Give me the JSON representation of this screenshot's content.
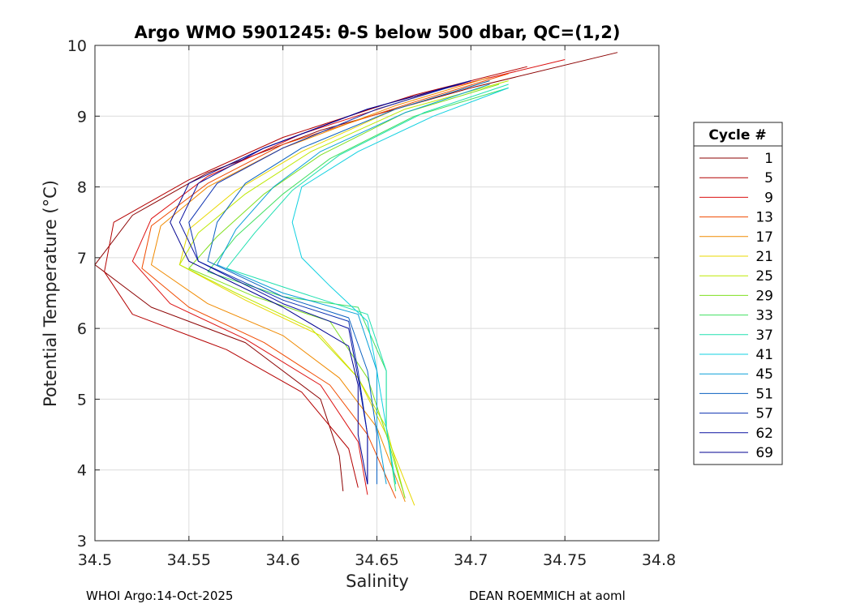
{
  "chart_data": {
    "type": "line",
    "title": "Argo WMO 5901245: θ-S below 500 dbar,  QC=(1,2)",
    "xlabel": "Salinity",
    "ylabel": "Potential Temperature (°C)",
    "xlim": [
      34.5,
      34.8
    ],
    "ylim": [
      3,
      10
    ],
    "xticks": [
      "34.5",
      "34.55",
      "34.6",
      "34.65",
      "34.7",
      "34.75",
      "34.8"
    ],
    "yticks": [
      "3",
      "4",
      "5",
      "6",
      "7",
      "8",
      "9",
      "10"
    ],
    "grid": true,
    "legend": {
      "title": "Cycle #",
      "placement": "right",
      "entries": [
        {
          "label": "1",
          "color": "#8b0000"
        },
        {
          "label": "5",
          "color": "#b40000"
        },
        {
          "label": "9",
          "color": "#dc1010"
        },
        {
          "label": "13",
          "color": "#f04a00"
        },
        {
          "label": "17",
          "color": "#f08a00"
        },
        {
          "label": "21",
          "color": "#e8d800"
        },
        {
          "label": "25",
          "color": "#bde800"
        },
        {
          "label": "29",
          "color": "#80e020"
        },
        {
          "label": "33",
          "color": "#40e060"
        },
        {
          "label": "37",
          "color": "#20e0b0"
        },
        {
          "label": "41",
          "color": "#10d0e0"
        },
        {
          "label": "45",
          "color": "#0aa0d8"
        },
        {
          "label": "51",
          "color": "#0a60c0"
        },
        {
          "label": "57",
          "color": "#0a30b0"
        },
        {
          "label": "62",
          "color": "#0a10a0"
        },
        {
          "label": "69",
          "color": "#000090"
        }
      ]
    },
    "representative_series": [
      {
        "name": "1",
        "color": "#8b0000",
        "s": [
          34.778,
          34.7,
          34.62,
          34.56,
          34.52,
          34.5,
          34.53,
          34.58,
          34.62,
          34.63,
          34.632
        ],
        "t": [
          9.9,
          9.4,
          8.8,
          8.2,
          7.6,
          6.9,
          6.3,
          5.8,
          5.0,
          4.2,
          3.7
        ]
      },
      {
        "name": "5",
        "color": "#b40000",
        "s": [
          34.73,
          34.67,
          34.6,
          34.55,
          34.51,
          34.505,
          34.52,
          34.57,
          34.61,
          34.635,
          34.64
        ],
        "t": [
          9.7,
          9.3,
          8.7,
          8.1,
          7.5,
          6.8,
          6.2,
          5.7,
          5.1,
          4.3,
          3.75
        ]
      },
      {
        "name": "9",
        "color": "#dc1010",
        "s": [
          34.75,
          34.68,
          34.61,
          34.56,
          34.53,
          34.52,
          34.54,
          34.58,
          34.62,
          34.64,
          34.645
        ],
        "t": [
          9.8,
          9.35,
          8.75,
          8.15,
          7.55,
          6.95,
          6.35,
          5.85,
          5.2,
          4.4,
          3.65
        ]
      },
      {
        "name": "13",
        "color": "#f04a00",
        "s": [
          34.72,
          34.67,
          34.6,
          34.56,
          34.53,
          34.525,
          34.55,
          34.59,
          34.625,
          34.645,
          34.66
        ],
        "t": [
          9.6,
          9.2,
          8.6,
          8.05,
          7.45,
          6.85,
          6.3,
          5.8,
          5.2,
          4.5,
          3.6
        ]
      },
      {
        "name": "17",
        "color": "#f08a00",
        "s": [
          34.71,
          34.66,
          34.6,
          34.56,
          34.535,
          34.53,
          34.56,
          34.6,
          34.63,
          34.65,
          34.665
        ],
        "t": [
          9.55,
          9.15,
          8.55,
          8.0,
          7.45,
          6.9,
          6.35,
          5.9,
          5.3,
          4.6,
          3.55
        ]
      },
      {
        "name": "21",
        "color": "#e8d800",
        "s": [
          34.71,
          34.66,
          34.61,
          34.575,
          34.55,
          34.545,
          34.58,
          34.62,
          34.64,
          34.655,
          34.67
        ],
        "t": [
          9.5,
          9.1,
          8.5,
          7.95,
          7.4,
          6.9,
          6.4,
          5.9,
          5.3,
          4.5,
          3.5
        ]
      },
      {
        "name": "25",
        "color": "#bde800",
        "s": [
          34.72,
          34.665,
          34.615,
          34.58,
          34.555,
          34.545,
          34.575,
          34.615,
          34.64,
          34.655,
          34.665
        ],
        "t": [
          9.5,
          9.1,
          8.5,
          7.9,
          7.35,
          6.9,
          6.5,
          6.0,
          5.3,
          4.6,
          3.6
        ]
      },
      {
        "name": "29",
        "color": "#80e020",
        "s": [
          34.715,
          34.665,
          34.62,
          34.59,
          34.565,
          34.55,
          34.585,
          34.625,
          34.645,
          34.655,
          34.665
        ],
        "t": [
          9.45,
          9.05,
          8.45,
          7.9,
          7.3,
          6.85,
          6.45,
          6.1,
          5.3,
          4.5,
          3.6
        ]
      },
      {
        "name": "33",
        "color": "#40e060",
        "s": [
          34.72,
          34.67,
          34.625,
          34.6,
          34.575,
          34.56,
          34.6,
          34.64,
          34.655,
          34.655,
          34.66
        ],
        "t": [
          9.4,
          9.0,
          8.4,
          7.9,
          7.3,
          6.8,
          6.45,
          6.3,
          5.4,
          4.6,
          3.7
        ]
      },
      {
        "name": "37",
        "color": "#20e0b0",
        "s": [
          34.72,
          34.675,
          34.63,
          34.605,
          34.585,
          34.57,
          34.61,
          34.645,
          34.655,
          34.655,
          34.66
        ],
        "t": [
          9.45,
          9.05,
          8.45,
          7.95,
          7.35,
          6.85,
          6.5,
          6.2,
          5.4,
          4.6,
          3.8
        ]
      },
      {
        "name": "41",
        "color": "#10d0e0",
        "s": [
          34.72,
          34.68,
          34.64,
          34.61,
          34.605,
          34.61,
          34.625,
          34.645,
          34.65,
          34.655,
          34.66
        ],
        "t": [
          9.4,
          9.0,
          8.5,
          8.0,
          7.5,
          7.0,
          6.6,
          6.1,
          5.4,
          4.6,
          3.8
        ]
      },
      {
        "name": "45",
        "color": "#0aa0d8",
        "s": [
          34.71,
          34.665,
          34.62,
          34.595,
          34.575,
          34.565,
          34.6,
          34.64,
          34.65,
          34.65,
          34.655
        ],
        "t": [
          9.45,
          9.05,
          8.5,
          8.0,
          7.4,
          6.9,
          6.5,
          6.2,
          5.4,
          4.6,
          3.8
        ]
      },
      {
        "name": "51",
        "color": "#0a60c0",
        "s": [
          34.71,
          34.66,
          34.61,
          34.58,
          34.565,
          34.56,
          34.6,
          34.635,
          34.645,
          34.65,
          34.65
        ],
        "t": [
          9.5,
          9.1,
          8.55,
          8.05,
          7.5,
          6.95,
          6.45,
          6.15,
          5.4,
          4.5,
          3.8
        ]
      },
      {
        "name": "57",
        "color": "#0a30b0",
        "s": [
          34.7,
          34.65,
          34.6,
          34.565,
          34.55,
          34.555,
          34.6,
          34.635,
          34.64,
          34.645,
          34.645
        ],
        "t": [
          9.5,
          9.1,
          8.55,
          8.05,
          7.5,
          6.95,
          6.4,
          6.1,
          5.4,
          4.5,
          3.8
        ]
      },
      {
        "name": "62",
        "color": "#0a10a0",
        "s": [
          34.7,
          34.645,
          34.59,
          34.555,
          34.545,
          34.555,
          34.6,
          34.635,
          34.64,
          34.645,
          34.645
        ],
        "t": [
          9.5,
          9.1,
          8.55,
          8.05,
          7.5,
          6.95,
          6.35,
          6.0,
          5.3,
          4.5,
          3.8
        ]
      },
      {
        "name": "69",
        "color": "#000090",
        "s": [
          34.7,
          34.645,
          34.59,
          34.55,
          34.54,
          34.55,
          34.6,
          34.635,
          34.64,
          34.64,
          34.645
        ],
        "t": [
          9.5,
          9.1,
          8.55,
          8.05,
          7.5,
          6.95,
          6.3,
          5.75,
          5.2,
          4.5,
          3.8
        ]
      }
    ]
  },
  "footer": {
    "left": "WHOI Argo:14-Oct-2025",
    "right": "DEAN ROEMMICH at aoml"
  }
}
